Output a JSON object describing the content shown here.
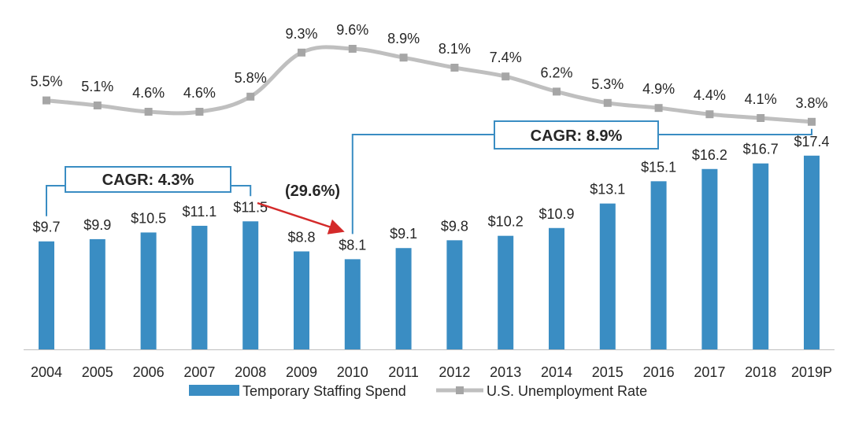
{
  "chart_data": {
    "type": "bar",
    "categories": [
      "2004",
      "2005",
      "2006",
      "2007",
      "2008",
      "2009",
      "2010",
      "2011",
      "2012",
      "2013",
      "2014",
      "2015",
      "2016",
      "2017",
      "2018",
      "2019P"
    ],
    "series": [
      {
        "name": "Temporary Staffing Spend",
        "type": "bar",
        "values": [
          9.7,
          9.9,
          10.5,
          11.1,
          11.5,
          8.8,
          8.1,
          9.1,
          9.8,
          10.2,
          10.9,
          13.1,
          15.1,
          16.2,
          16.7,
          17.4
        ],
        "labels": [
          "$9.7",
          "$9.9",
          "$10.5",
          "$11.1",
          "$11.5",
          "$8.8",
          "$8.1",
          "$9.1",
          "$9.8",
          "$10.2",
          "$10.9",
          "$13.1",
          "$15.1",
          "$16.2",
          "$16.7",
          "$17.4"
        ]
      },
      {
        "name": "U.S. Unemployment Rate",
        "type": "line",
        "values": [
          5.5,
          5.1,
          4.6,
          4.6,
          5.8,
          9.3,
          9.6,
          8.9,
          8.1,
          7.4,
          6.2,
          5.3,
          4.9,
          4.4,
          4.1,
          3.8
        ],
        "labels": [
          "5.5%",
          "5.1%",
          "4.6%",
          "4.6%",
          "5.8%",
          "9.3%",
          "9.6%",
          "8.9%",
          "8.1%",
          "7.4%",
          "6.2%",
          "5.3%",
          "4.9%",
          "4.4%",
          "4.1%",
          "3.8%"
        ]
      }
    ],
    "annotations": {
      "cagr_left": "CAGR: 4.3%",
      "cagr_right": "CAGR: 8.9%",
      "decline": "(29.6%)"
    },
    "legend": {
      "position": "bottom"
    },
    "grid": false,
    "colors": {
      "bar": "#3A8DC3",
      "line": "#BFBFBF",
      "marker": "#A6A6A6",
      "box": "#3A8DC3",
      "arrow": "#D42A2A",
      "text": "#262626",
      "axis": "#BFBFBF"
    }
  }
}
